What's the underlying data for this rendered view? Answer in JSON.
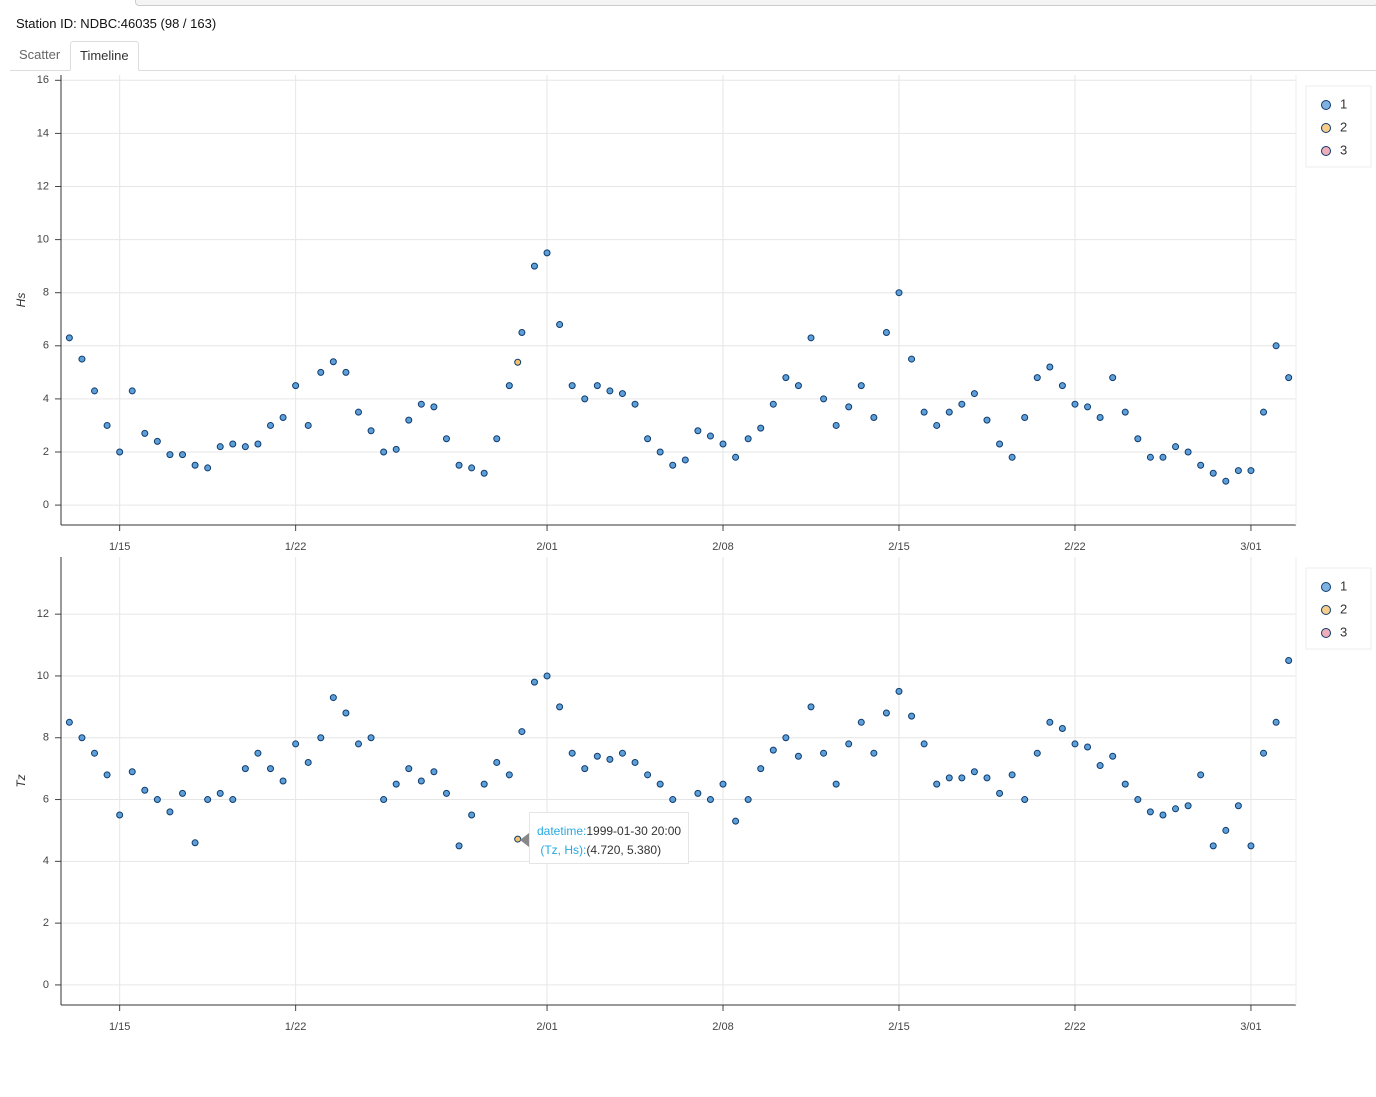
{
  "station_label": "Station ID: NDBC:46035 (98 / 163)",
  "tabs": [
    "Scatter",
    "Timeline"
  ],
  "tooltip": {
    "datetime_key": "datetime:",
    "datetime_value": "1999-01-30 20:00",
    "point_key": "(Tz, Hs):",
    "point_value": "(4.720, 5.380)"
  },
  "chart_data": [
    {
      "type": "scatter",
      "y_label": "Hs",
      "xlim": [
        "1999-01-12T16:00",
        "1999-03-02T19:00"
      ],
      "xticks": [
        {
          "value": "1999-01-15T00:00",
          "label": "1/15"
        },
        {
          "value": "1999-01-22T00:00",
          "label": "1/22"
        },
        {
          "value": "1999-02-01T00:00",
          "label": "2/01"
        },
        {
          "value": "1999-02-08T00:00",
          "label": "2/08"
        },
        {
          "value": "1999-02-15T00:00",
          "label": "2/15"
        },
        {
          "value": "1999-02-22T00:00",
          "label": "2/22"
        },
        {
          "value": "1999-03-01T00:00",
          "label": "3/01"
        }
      ],
      "ylim": [
        -0.75,
        16.2
      ],
      "yticks": [
        0,
        2,
        4,
        6,
        8,
        10,
        12,
        14,
        16
      ],
      "grid": true,
      "legend": "right",
      "series": [
        {
          "name": "1",
          "color": "#5f9fd8",
          "x": [
            "1999-01-13T00:00",
            "1999-01-13T12:00",
            "1999-01-14T00:00",
            "1999-01-14T12:00",
            "1999-01-15T00:00",
            "1999-01-15T12:00",
            "1999-01-16T00:00",
            "1999-01-16T12:00",
            "1999-01-17T00:00",
            "1999-01-17T12:00",
            "1999-01-18T00:00",
            "1999-01-18T12:00",
            "1999-01-19T00:00",
            "1999-01-19T12:00",
            "1999-01-20T00:00",
            "1999-01-20T12:00",
            "1999-01-21T00:00",
            "1999-01-21T12:00",
            "1999-01-22T00:00",
            "1999-01-22T12:00",
            "1999-01-23T00:00",
            "1999-01-23T12:00",
            "1999-01-24T00:00",
            "1999-01-24T12:00",
            "1999-01-25T00:00",
            "1999-01-25T12:00",
            "1999-01-26T00:00",
            "1999-01-26T12:00",
            "1999-01-27T00:00",
            "1999-01-27T12:00",
            "1999-01-28T00:00",
            "1999-01-28T12:00",
            "1999-01-29T00:00",
            "1999-01-29T12:00",
            "1999-01-30T00:00",
            "1999-01-30T12:00",
            "1999-01-31T00:00",
            "1999-01-31T12:00",
            "1999-02-01T00:00",
            "1999-02-01T12:00",
            "1999-02-02T00:00",
            "1999-02-02T12:00",
            "1999-02-03T00:00",
            "1999-02-03T12:00",
            "1999-02-04T00:00",
            "1999-02-04T12:00",
            "1999-02-05T00:00",
            "1999-02-05T12:00",
            "1999-02-06T00:00",
            "1999-02-06T12:00",
            "1999-02-07T00:00",
            "1999-02-07T12:00",
            "1999-02-08T00:00",
            "1999-02-08T12:00",
            "1999-02-09T00:00",
            "1999-02-09T12:00",
            "1999-02-10T00:00",
            "1999-02-10T12:00",
            "1999-02-11T00:00",
            "1999-02-11T12:00",
            "1999-02-12T00:00",
            "1999-02-12T12:00",
            "1999-02-13T00:00",
            "1999-02-13T12:00",
            "1999-02-14T00:00",
            "1999-02-14T12:00",
            "1999-02-15T00:00",
            "1999-02-15T12:00",
            "1999-02-16T00:00",
            "1999-02-16T12:00",
            "1999-02-17T00:00",
            "1999-02-17T12:00",
            "1999-02-18T00:00",
            "1999-02-18T12:00",
            "1999-02-19T00:00",
            "1999-02-19T12:00",
            "1999-02-20T00:00",
            "1999-02-20T12:00",
            "1999-02-21T00:00",
            "1999-02-21T12:00",
            "1999-02-22T00:00",
            "1999-02-22T12:00",
            "1999-02-23T00:00",
            "1999-02-23T12:00",
            "1999-02-24T00:00",
            "1999-02-24T12:00",
            "1999-02-25T00:00",
            "1999-02-25T12:00",
            "1999-02-26T00:00",
            "1999-02-26T12:00",
            "1999-02-27T00:00",
            "1999-02-27T12:00",
            "1999-02-28T00:00",
            "1999-02-28T12:00",
            "1999-03-01T00:00",
            "1999-03-01T12:00",
            "1999-03-02T00:00",
            "1999-03-02T12:00"
          ],
          "values": [
            6.3,
            5.5,
            4.3,
            3.0,
            2.0,
            4.3,
            2.7,
            2.4,
            1.9,
            1.9,
            1.5,
            1.4,
            2.2,
            2.3,
            2.2,
            2.3,
            3.0,
            3.3,
            4.5,
            3.0,
            5.0,
            5.4,
            5.0,
            3.5,
            2.8,
            2.0,
            2.1,
            3.2,
            3.8,
            3.7,
            2.5,
            1.5,
            1.4,
            1.2,
            2.5,
            4.5,
            6.5,
            9.0,
            9.5,
            6.8,
            4.5,
            4.0,
            4.5,
            4.3,
            4.2,
            3.8,
            2.5,
            2.0,
            1.5,
            1.7,
            2.8,
            2.6,
            2.3,
            1.8,
            2.5,
            2.9,
            3.8,
            4.8,
            4.5,
            6.3,
            4.0,
            3.0,
            3.7,
            4.5,
            3.3,
            6.5,
            8.0,
            5.5,
            3.5,
            3.0,
            3.5,
            3.8,
            4.2,
            3.2,
            2.3,
            1.8,
            3.3,
            4.8,
            5.2,
            4.5,
            3.8,
            3.7,
            3.3,
            4.8,
            3.5,
            2.5,
            1.8,
            1.8,
            2.2,
            2.0,
            1.5,
            1.2,
            0.9,
            1.3,
            1.3,
            3.5,
            6.0,
            4.8
          ]
        },
        {
          "name": "2",
          "color": "#f5c26b",
          "x": [
            "1999-01-30T20:00"
          ],
          "values": [
            5.38
          ]
        },
        {
          "name": "3",
          "color": "#e899a8",
          "x": [],
          "values": []
        }
      ]
    },
    {
      "type": "scatter",
      "y_label": "Tz",
      "xlim": [
        "1999-01-12T16:00",
        "1999-03-02T19:00"
      ],
      "xticks": [
        {
          "value": "1999-01-15T00:00",
          "label": "1/15"
        },
        {
          "value": "1999-01-22T00:00",
          "label": "1/22"
        },
        {
          "value": "1999-02-01T00:00",
          "label": "2/01"
        },
        {
          "value": "1999-02-08T00:00",
          "label": "2/08"
        },
        {
          "value": "1999-02-15T00:00",
          "label": "2/15"
        },
        {
          "value": "1999-02-22T00:00",
          "label": "2/22"
        },
        {
          "value": "1999-03-01T00:00",
          "label": "3/01"
        }
      ],
      "ylim": [
        -0.65,
        13.85
      ],
      "yticks": [
        0,
        2,
        4,
        6,
        8,
        10,
        12
      ],
      "grid": true,
      "legend": "right",
      "series": [
        {
          "name": "1",
          "color": "#5f9fd8",
          "x": [
            "1999-01-13T00:00",
            "1999-01-13T12:00",
            "1999-01-14T00:00",
            "1999-01-14T12:00",
            "1999-01-15T00:00",
            "1999-01-15T12:00",
            "1999-01-16T00:00",
            "1999-01-16T12:00",
            "1999-01-17T00:00",
            "1999-01-17T12:00",
            "1999-01-18T00:00",
            "1999-01-18T12:00",
            "1999-01-19T00:00",
            "1999-01-19T12:00",
            "1999-01-20T00:00",
            "1999-01-20T12:00",
            "1999-01-21T00:00",
            "1999-01-21T12:00",
            "1999-01-22T00:00",
            "1999-01-22T12:00",
            "1999-01-23T00:00",
            "1999-01-23T12:00",
            "1999-01-24T00:00",
            "1999-01-24T12:00",
            "1999-01-25T00:00",
            "1999-01-25T12:00",
            "1999-01-26T00:00",
            "1999-01-26T12:00",
            "1999-01-27T00:00",
            "1999-01-27T12:00",
            "1999-01-28T00:00",
            "1999-01-28T12:00",
            "1999-01-29T00:00",
            "1999-01-29T12:00",
            "1999-01-30T00:00",
            "1999-01-30T12:00",
            "1999-01-31T00:00",
            "1999-01-31T12:00",
            "1999-02-01T00:00",
            "1999-02-01T12:00",
            "1999-02-02T00:00",
            "1999-02-02T12:00",
            "1999-02-03T00:00",
            "1999-02-03T12:00",
            "1999-02-04T00:00",
            "1999-02-04T12:00",
            "1999-02-05T00:00",
            "1999-02-05T12:00",
            "1999-02-06T00:00",
            "1999-02-06T12:00",
            "1999-02-07T00:00",
            "1999-02-07T12:00",
            "1999-02-08T00:00",
            "1999-02-08T12:00",
            "1999-02-09T00:00",
            "1999-02-09T12:00",
            "1999-02-10T00:00",
            "1999-02-10T12:00",
            "1999-02-11T00:00",
            "1999-02-11T12:00",
            "1999-02-12T00:00",
            "1999-02-12T12:00",
            "1999-02-13T00:00",
            "1999-02-13T12:00",
            "1999-02-14T00:00",
            "1999-02-14T12:00",
            "1999-02-15T00:00",
            "1999-02-15T12:00",
            "1999-02-16T00:00",
            "1999-02-16T12:00",
            "1999-02-17T00:00",
            "1999-02-17T12:00",
            "1999-02-18T00:00",
            "1999-02-18T12:00",
            "1999-02-19T00:00",
            "1999-02-19T12:00",
            "1999-02-20T00:00",
            "1999-02-20T12:00",
            "1999-02-21T00:00",
            "1999-02-21T12:00",
            "1999-02-22T00:00",
            "1999-02-22T12:00",
            "1999-02-23T00:00",
            "1999-02-23T12:00",
            "1999-02-24T00:00",
            "1999-02-24T12:00",
            "1999-02-25T00:00",
            "1999-02-25T12:00",
            "1999-02-26T00:00",
            "1999-02-26T12:00",
            "1999-02-27T00:00",
            "1999-02-27T12:00",
            "1999-02-28T00:00",
            "1999-02-28T12:00",
            "1999-03-01T00:00",
            "1999-03-01T12:00",
            "1999-03-02T00:00",
            "1999-03-02T12:00"
          ],
          "values": [
            8.5,
            8.0,
            7.5,
            6.8,
            5.5,
            6.9,
            6.3,
            6.0,
            5.6,
            6.2,
            4.6,
            6.0,
            6.2,
            6.0,
            7.0,
            7.5,
            7.0,
            6.6,
            7.8,
            7.2,
            8.0,
            9.3,
            8.8,
            7.8,
            8.0,
            6.0,
            6.5,
            7.0,
            6.6,
            6.9,
            6.2,
            4.5,
            5.5,
            6.5,
            7.2,
            6.8,
            8.2,
            9.8,
            10.0,
            9.0,
            7.5,
            7.0,
            7.4,
            7.3,
            7.5,
            7.2,
            6.8,
            6.5,
            6.0,
            5.3,
            6.2,
            6.0,
            6.5,
            5.3,
            6.0,
            7.0,
            7.6,
            8.0,
            7.4,
            9.0,
            7.5,
            6.5,
            7.8,
            8.5,
            7.5,
            8.8,
            9.5,
            8.7,
            7.8,
            6.5,
            6.7,
            6.7,
            6.9,
            6.7,
            6.2,
            6.8,
            6.0,
            7.5,
            8.5,
            8.3,
            7.8,
            7.7,
            7.1,
            7.4,
            6.5,
            6.0,
            5.6,
            5.5,
            5.7,
            5.8,
            6.8,
            4.5,
            5.0,
            5.8,
            4.5,
            7.5,
            8.5,
            10.5
          ]
        },
        {
          "name": "2",
          "color": "#f5c26b",
          "x": [
            "1999-01-30T20:00"
          ],
          "values": [
            4.72
          ]
        },
        {
          "name": "3",
          "color": "#e899a8",
          "x": [],
          "values": []
        }
      ]
    }
  ]
}
